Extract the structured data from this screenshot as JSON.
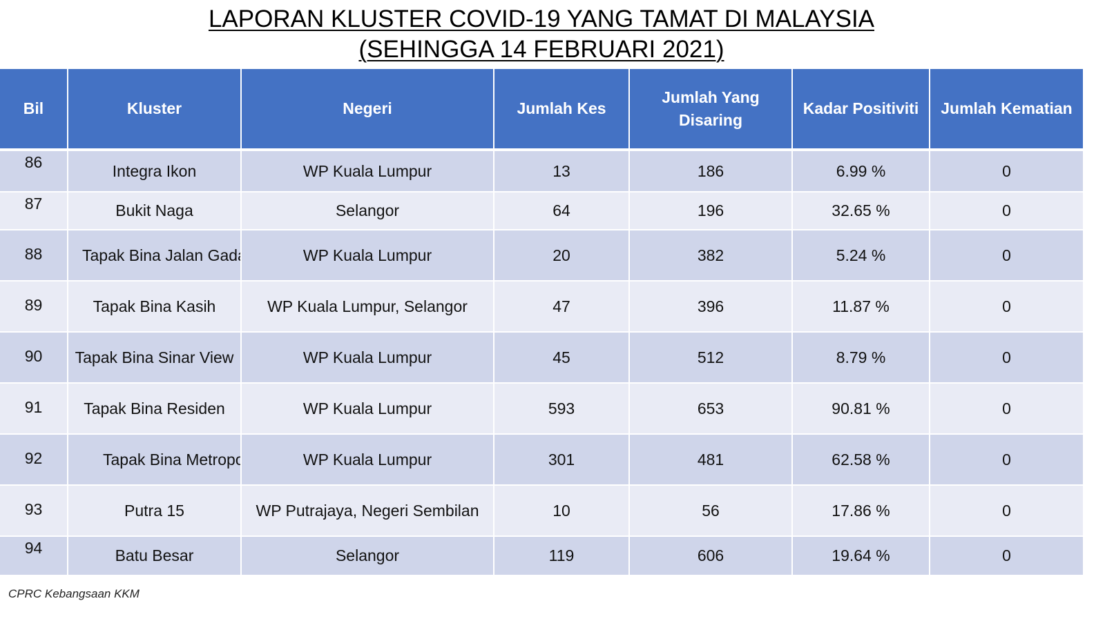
{
  "title": {
    "line1": "LAPORAN KLUSTER COVID-19 YANG TAMAT DI MALAYSIA",
    "line2": "(SEHINGGA  14 FEBRUARI 2021)"
  },
  "table": {
    "headers": [
      "Bil",
      "Kluster",
      "Negeri",
      "Jumlah Kes",
      "Jumlah Yang Disaring",
      "Kadar Positiviti",
      "Jumlah Kematian"
    ],
    "rows": [
      [
        "86",
        "Integra Ikon",
        "WP Kuala Lumpur",
        "13",
        "186",
        "6.99 %",
        "0"
      ],
      [
        "87",
        "Bukit Naga",
        "Selangor",
        "64",
        "196",
        "32.65 %",
        "0"
      ],
      [
        "88",
        "Tapak Bina Jalan Gadang",
        "WP Kuala Lumpur",
        "20",
        "382",
        "5.24 %",
        "0"
      ],
      [
        "89",
        "Tapak Bina Kasih",
        "WP Kuala Lumpur, Selangor",
        "47",
        "396",
        "11.87 %",
        "0"
      ],
      [
        "90",
        "Tapak Bina Sinar View",
        "WP Kuala Lumpur",
        "45",
        "512",
        "8.79 %",
        "0"
      ],
      [
        "91",
        "Tapak Bina Residen",
        "WP Kuala Lumpur",
        "593",
        "653",
        "90.81 %",
        "0"
      ],
      [
        "92",
        "Tapak Bina Metropolis",
        "WP Kuala Lumpur",
        "301",
        "481",
        "62.58 %",
        "0"
      ],
      [
        "93",
        "Putra 15",
        "WP Putrajaya, Negeri Sembilan",
        "10",
        "56",
        "17.86 %",
        "0"
      ],
      [
        "94",
        "Batu Besar",
        "Selangor",
        "119",
        "606",
        "19.64 %",
        "0"
      ]
    ]
  },
  "footer": {
    "source": "CPRC Kebangsaan KKM"
  },
  "colors": {
    "header_bg": "#4472c4",
    "row_dark": "#cfd5ea",
    "row_light": "#e9ebf5"
  }
}
